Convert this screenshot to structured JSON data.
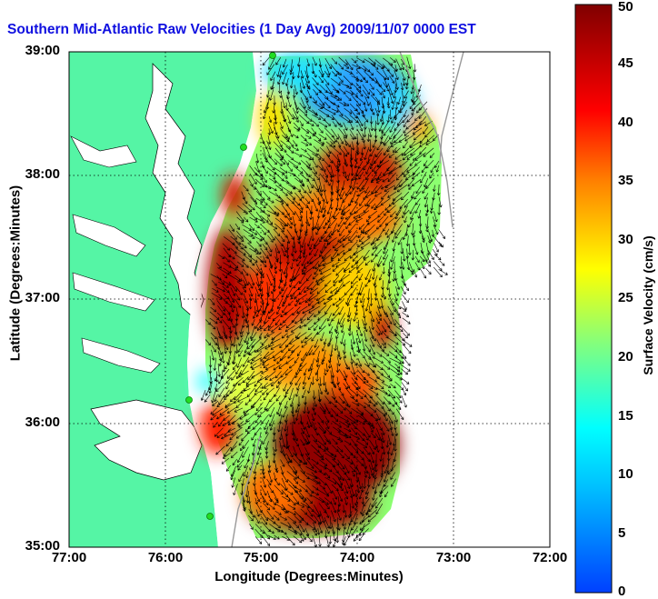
{
  "title": "Southern Mid-Atlantic Raw Velocities (1 Day Avg) 2009/11/07 0000 EST",
  "x_axis": {
    "label": "Longitude (Degrees:Minutes)",
    "ticks": [
      {
        "value": -77,
        "label": "77:00"
      },
      {
        "value": -76,
        "label": "76:00"
      },
      {
        "value": -75,
        "label": "75:00"
      },
      {
        "value": -74,
        "label": "74:00"
      },
      {
        "value": -73,
        "label": "73:00"
      },
      {
        "value": -72,
        "label": "72:00"
      }
    ],
    "range": [
      -77,
      -72
    ]
  },
  "y_axis": {
    "label": "Latitude (Degrees:Minutes)",
    "ticks": [
      {
        "value": 39,
        "label": "39:00"
      },
      {
        "value": 38,
        "label": "38:00"
      },
      {
        "value": 37,
        "label": "37:00"
      },
      {
        "value": 36,
        "label": "36:00"
      },
      {
        "value": 35,
        "label": "35:00"
      }
    ],
    "range": [
      35,
      39
    ]
  },
  "colorbar": {
    "label": "Surface Velocity (cm/s)",
    "min": 0,
    "max": 50,
    "ticks": [
      {
        "value": 50,
        "label": "50"
      },
      {
        "value": 45,
        "label": "45"
      },
      {
        "value": 40,
        "label": "40"
      },
      {
        "value": 35,
        "label": "35"
      },
      {
        "value": 30,
        "label": "30"
      },
      {
        "value": 25,
        "label": "25"
      },
      {
        "value": 20,
        "label": "20"
      },
      {
        "value": 15,
        "label": "15"
      },
      {
        "value": 10,
        "label": "10"
      },
      {
        "value": 5,
        "label": "5"
      },
      {
        "value": 0,
        "label": "0"
      }
    ],
    "colormap": [
      "#0000ff",
      "#00ffff",
      "#80ff80",
      "#ffff00",
      "#ff8000",
      "#ff0000",
      "#800000"
    ]
  },
  "colors": {
    "land": "#55f5a5",
    "water_background": "#ffffff",
    "title": "#1010e0",
    "grid": "#000000",
    "vector": "#000000",
    "radar_site": "#22dd22"
  }
}
